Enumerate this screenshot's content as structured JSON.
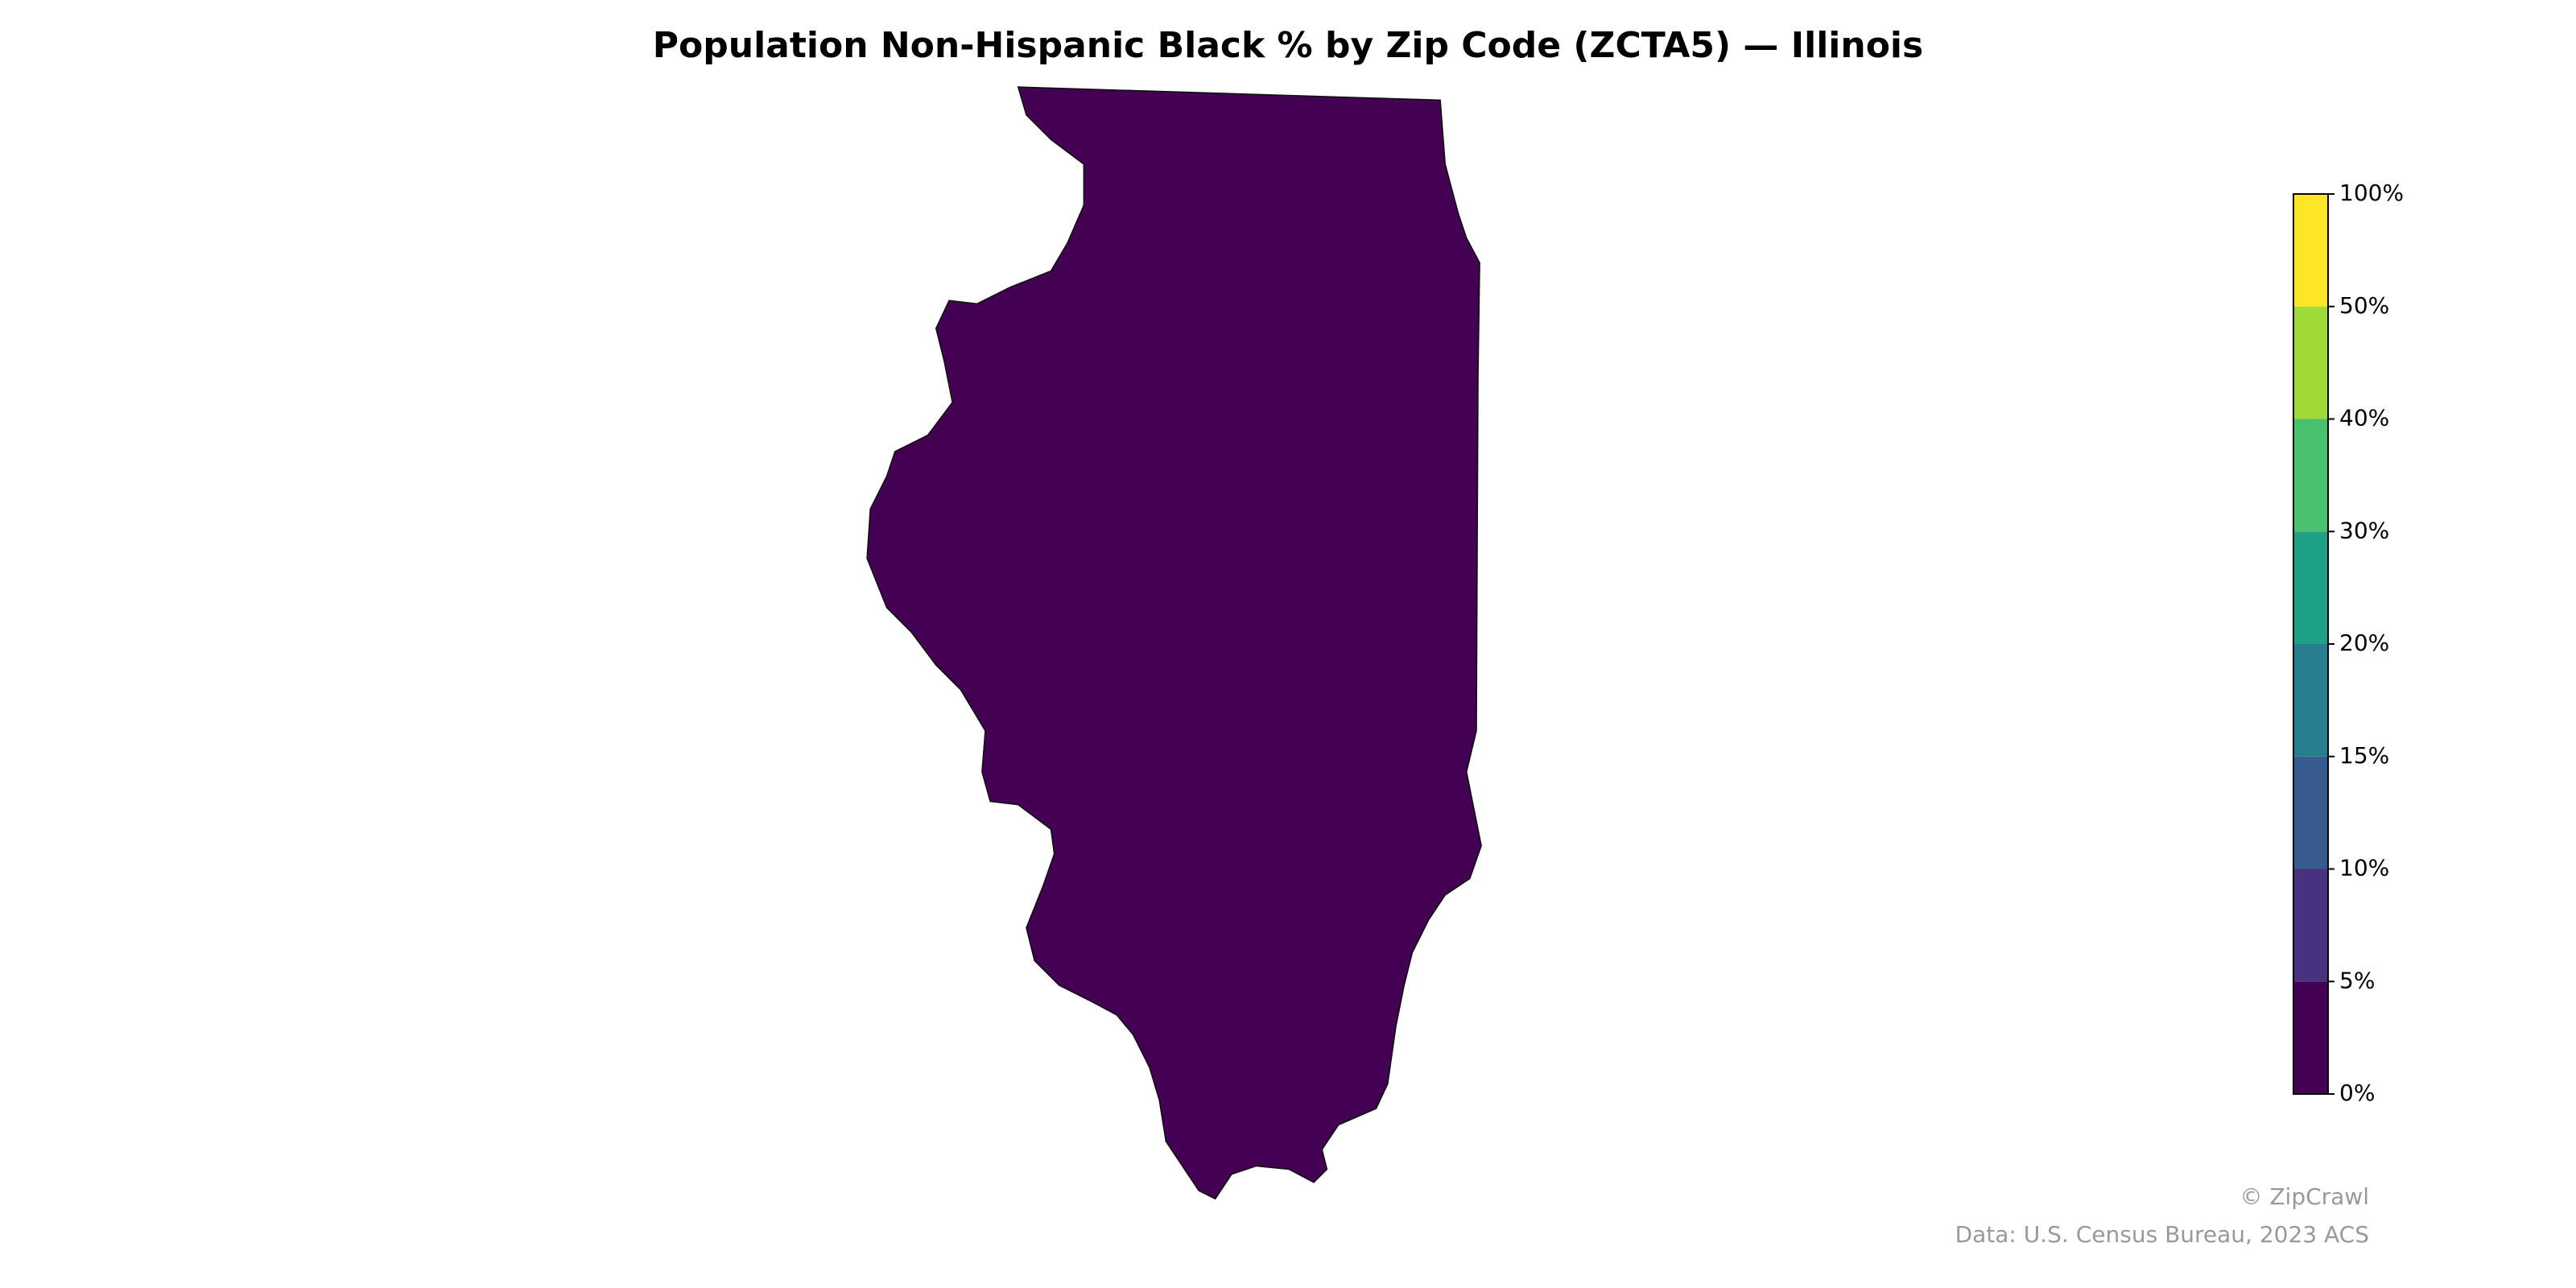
{
  "chart_data": {
    "type": "choropleth",
    "title": "Population Non-Hispanic Black % by Zip Code (ZCTA5) — Illinois",
    "colorbar": {
      "ticks": [
        {
          "value": 0,
          "label": "0%"
        },
        {
          "value": 5,
          "label": "5%"
        },
        {
          "value": 10,
          "label": "10%"
        },
        {
          "value": 15,
          "label": "15%"
        },
        {
          "value": 20,
          "label": "20%"
        },
        {
          "value": 30,
          "label": "30%"
        },
        {
          "value": 40,
          "label": "40%"
        },
        {
          "value": 50,
          "label": "50%"
        },
        {
          "value": 100,
          "label": "100%"
        }
      ],
      "colors": [
        "#440154",
        "#46327e",
        "#365c8d",
        "#277f8e",
        "#1fa187",
        "#4ac16d",
        "#a0da39",
        "#fde725"
      ]
    },
    "credit": "© ZipCrawl",
    "source": "Data: U.S. Census Bureau, 2023 ACS"
  }
}
